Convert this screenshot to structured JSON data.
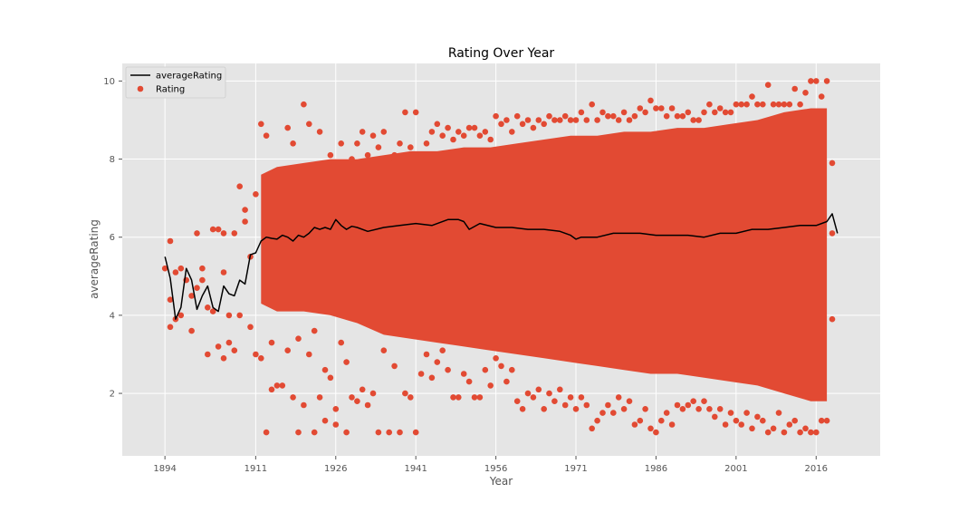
{
  "chart_data": {
    "type": "scatter",
    "title": "Rating Over Year",
    "xlabel": "Year",
    "ylabel": "averageRating",
    "xlim": [
      1886,
      2028
    ],
    "ylim": [
      0.4,
      10.45
    ],
    "xticks": [
      1894,
      1911,
      1926,
      1941,
      1956,
      1971,
      1986,
      2001,
      2016
    ],
    "yticks": [
      2,
      4,
      6,
      8,
      10
    ],
    "grid": true,
    "legend_placement": "upper-left",
    "style": {
      "background": "#e5e5e5",
      "grid_color": "#ffffff",
      "point_color": "#e24a33",
      "line_color": "#000000"
    },
    "series": [
      {
        "name": "averageRating",
        "kind": "line",
        "x": [
          1894,
          1895,
          1896,
          1897,
          1898,
          1899,
          1900,
          1901,
          1902,
          1903,
          1904,
          1905,
          1906,
          1907,
          1908,
          1909,
          1910,
          1911,
          1912,
          1913,
          1914,
          1915,
          1916,
          1917,
          1918,
          1919,
          1920,
          1921,
          1922,
          1923,
          1924,
          1925,
          1926,
          1927,
          1928,
          1929,
          1930,
          1932,
          1935,
          1938,
          1941,
          1944,
          1947,
          1949,
          1950,
          1951,
          1953,
          1956,
          1959,
          1962,
          1965,
          1968,
          1970,
          1971,
          1972,
          1975,
          1978,
          1980,
          1983,
          1986,
          1989,
          1992,
          1995,
          1998,
          2001,
          2004,
          2007,
          2010,
          2013,
          2016,
          2018,
          2019,
          2020
        ],
        "values": [
          5.5,
          4.95,
          3.9,
          4.2,
          5.2,
          4.9,
          4.15,
          4.5,
          4.75,
          4.2,
          4.1,
          4.75,
          4.55,
          4.5,
          4.9,
          4.8,
          5.55,
          5.6,
          5.9,
          6.0,
          5.97,
          5.95,
          6.05,
          6.0,
          5.9,
          6.05,
          6.0,
          6.1,
          6.25,
          6.2,
          6.25,
          6.2,
          6.45,
          6.3,
          6.2,
          6.28,
          6.25,
          6.15,
          6.25,
          6.3,
          6.35,
          6.3,
          6.45,
          6.45,
          6.4,
          6.2,
          6.35,
          6.25,
          6.25,
          6.2,
          6.2,
          6.15,
          6.05,
          5.95,
          6.0,
          6.0,
          6.1,
          6.1,
          6.1,
          6.05,
          6.05,
          6.05,
          6.0,
          6.1,
          6.1,
          6.2,
          6.2,
          6.25,
          6.3,
          6.3,
          6.4,
          6.6,
          6.1
        ]
      },
      {
        "name": "Rating",
        "kind": "scatter",
        "points": [
          [
            1894,
            5.2
          ],
          [
            1895,
            5.9
          ],
          [
            1895,
            4.4
          ],
          [
            1895,
            3.7
          ],
          [
            1896,
            3.9
          ],
          [
            1896,
            5.1
          ],
          [
            1897,
            5.2
          ],
          [
            1897,
            4.0
          ],
          [
            1898,
            4.9
          ],
          [
            1899,
            3.6
          ],
          [
            1899,
            4.5
          ],
          [
            1900,
            6.1
          ],
          [
            1900,
            4.7
          ],
          [
            1901,
            4.9
          ],
          [
            1901,
            5.2
          ],
          [
            1902,
            4.2
          ],
          [
            1902,
            3.0
          ],
          [
            1903,
            6.2
          ],
          [
            1903,
            4.1
          ],
          [
            1904,
            6.2
          ],
          [
            1904,
            3.2
          ],
          [
            1905,
            6.1
          ],
          [
            1905,
            2.9
          ],
          [
            1905,
            5.1
          ],
          [
            1906,
            4.0
          ],
          [
            1906,
            3.3
          ],
          [
            1907,
            6.1
          ],
          [
            1907,
            3.1
          ],
          [
            1908,
            7.3
          ],
          [
            1908,
            4.0
          ],
          [
            1909,
            6.4
          ],
          [
            1909,
            6.7
          ],
          [
            1910,
            3.7
          ],
          [
            1910,
            5.5
          ],
          [
            1911,
            7.1
          ],
          [
            1911,
            3.0
          ],
          [
            1912,
            8.9
          ],
          [
            1912,
            2.9
          ],
          [
            1913,
            8.6
          ],
          [
            1913,
            1.0
          ],
          [
            1914,
            2.1
          ],
          [
            1914,
            3.3
          ],
          [
            1915,
            2.2
          ],
          [
            1916,
            2.2
          ],
          [
            1917,
            8.8
          ],
          [
            1917,
            3.1
          ],
          [
            1918,
            8.4
          ],
          [
            1918,
            1.9
          ],
          [
            1919,
            3.4
          ],
          [
            1919,
            1.0
          ],
          [
            1920,
            9.4
          ],
          [
            1920,
            1.7
          ],
          [
            1921,
            8.9
          ],
          [
            1921,
            3.0
          ],
          [
            1922,
            1.0
          ],
          [
            1922,
            3.6
          ],
          [
            1923,
            8.7
          ],
          [
            1923,
            1.9
          ],
          [
            1924,
            2.6
          ],
          [
            1924,
            1.3
          ],
          [
            1925,
            8.1
          ],
          [
            1925,
            2.4
          ],
          [
            1926,
            1.6
          ],
          [
            1926,
            1.2
          ],
          [
            1927,
            8.4
          ],
          [
            1927,
            3.3
          ],
          [
            1928,
            1.0
          ],
          [
            1928,
            2.8
          ],
          [
            1929,
            8.0
          ],
          [
            1929,
            1.9
          ],
          [
            1930,
            8.4
          ],
          [
            1930,
            1.8
          ],
          [
            1931,
            8.7
          ],
          [
            1931,
            2.1
          ],
          [
            1932,
            8.1
          ],
          [
            1932,
            1.7
          ],
          [
            1933,
            8.6
          ],
          [
            1933,
            2.0
          ],
          [
            1934,
            8.3
          ],
          [
            1934,
            1.0
          ],
          [
            1935,
            8.7
          ],
          [
            1935,
            3.1
          ],
          [
            1936,
            8.0
          ],
          [
            1936,
            1.0
          ],
          [
            1937,
            8.1
          ],
          [
            1937,
            2.7
          ],
          [
            1938,
            8.4
          ],
          [
            1938,
            1.0
          ],
          [
            1939,
            9.2
          ],
          [
            1939,
            2.0
          ],
          [
            1940,
            8.3
          ],
          [
            1940,
            1.9
          ],
          [
            1941,
            9.2
          ],
          [
            1941,
            1.0
          ],
          [
            1942,
            8.1
          ],
          [
            1942,
            2.5
          ],
          [
            1943,
            8.4
          ],
          [
            1943,
            3.0
          ],
          [
            1944,
            8.7
          ],
          [
            1944,
            2.4
          ],
          [
            1945,
            8.9
          ],
          [
            1945,
            2.8
          ],
          [
            1946,
            8.6
          ],
          [
            1946,
            3.1
          ],
          [
            1947,
            8.8
          ],
          [
            1947,
            2.6
          ],
          [
            1948,
            8.5
          ],
          [
            1948,
            1.9
          ],
          [
            1949,
            8.7
          ],
          [
            1949,
            1.9
          ],
          [
            1950,
            8.6
          ],
          [
            1950,
            2.5
          ],
          [
            1951,
            8.8
          ],
          [
            1951,
            2.3
          ],
          [
            1952,
            8.8
          ],
          [
            1952,
            1.9
          ],
          [
            1953,
            8.6
          ],
          [
            1953,
            1.9
          ],
          [
            1954,
            8.7
          ],
          [
            1954,
            2.6
          ],
          [
            1955,
            8.5
          ],
          [
            1955,
            2.2
          ],
          [
            1956,
            9.1
          ],
          [
            1956,
            2.9
          ],
          [
            1957,
            8.9
          ],
          [
            1957,
            2.7
          ],
          [
            1958,
            9.0
          ],
          [
            1958,
            2.3
          ],
          [
            1959,
            8.7
          ],
          [
            1959,
            2.6
          ],
          [
            1960,
            9.1
          ],
          [
            1960,
            1.8
          ],
          [
            1961,
            8.9
          ],
          [
            1961,
            1.6
          ],
          [
            1962,
            9.0
          ],
          [
            1962,
            2.0
          ],
          [
            1963,
            8.8
          ],
          [
            1963,
            1.9
          ],
          [
            1964,
            9.0
          ],
          [
            1964,
            2.1
          ],
          [
            1965,
            8.9
          ],
          [
            1965,
            1.6
          ],
          [
            1966,
            9.1
          ],
          [
            1966,
            2.0
          ],
          [
            1967,
            9.0
          ],
          [
            1967,
            1.8
          ],
          [
            1968,
            9.0
          ],
          [
            1968,
            2.1
          ],
          [
            1969,
            9.1
          ],
          [
            1969,
            1.7
          ],
          [
            1970,
            9.0
          ],
          [
            1970,
            1.9
          ],
          [
            1971,
            9.0
          ],
          [
            1971,
            1.6
          ],
          [
            1972,
            9.2
          ],
          [
            1972,
            1.9
          ],
          [
            1973,
            9.0
          ],
          [
            1973,
            1.7
          ],
          [
            1974,
            9.4
          ],
          [
            1974,
            1.1
          ],
          [
            1975,
            9.0
          ],
          [
            1975,
            1.3
          ],
          [
            1976,
            9.2
          ],
          [
            1976,
            1.5
          ],
          [
            1977,
            9.1
          ],
          [
            1977,
            1.7
          ],
          [
            1978,
            9.1
          ],
          [
            1978,
            1.5
          ],
          [
            1979,
            9.0
          ],
          [
            1979,
            1.9
          ],
          [
            1980,
            9.2
          ],
          [
            1980,
            1.6
          ],
          [
            1981,
            9.0
          ],
          [
            1981,
            1.8
          ],
          [
            1982,
            9.1
          ],
          [
            1982,
            1.2
          ],
          [
            1983,
            9.3
          ],
          [
            1983,
            1.3
          ],
          [
            1984,
            9.2
          ],
          [
            1984,
            1.6
          ],
          [
            1985,
            9.5
          ],
          [
            1985,
            1.1
          ],
          [
            1986,
            9.3
          ],
          [
            1986,
            1.0
          ],
          [
            1987,
            9.3
          ],
          [
            1987,
            1.3
          ],
          [
            1988,
            9.1
          ],
          [
            1988,
            1.5
          ],
          [
            1989,
            9.3
          ],
          [
            1989,
            1.2
          ],
          [
            1990,
            9.1
          ],
          [
            1990,
            1.7
          ],
          [
            1991,
            9.1
          ],
          [
            1991,
            1.6
          ],
          [
            1992,
            9.2
          ],
          [
            1992,
            1.7
          ],
          [
            1993,
            9.0
          ],
          [
            1993,
            1.8
          ],
          [
            1994,
            9.0
          ],
          [
            1994,
            1.6
          ],
          [
            1995,
            9.2
          ],
          [
            1995,
            1.8
          ],
          [
            1996,
            9.4
          ],
          [
            1996,
            1.6
          ],
          [
            1997,
            9.2
          ],
          [
            1997,
            1.4
          ],
          [
            1998,
            9.3
          ],
          [
            1998,
            1.6
          ],
          [
            1999,
            9.2
          ],
          [
            1999,
            1.2
          ],
          [
            2000,
            9.2
          ],
          [
            2000,
            1.5
          ],
          [
            2001,
            9.4
          ],
          [
            2001,
            1.3
          ],
          [
            2002,
            9.4
          ],
          [
            2002,
            1.2
          ],
          [
            2003,
            9.4
          ],
          [
            2003,
            1.5
          ],
          [
            2004,
            9.6
          ],
          [
            2004,
            1.1
          ],
          [
            2005,
            9.4
          ],
          [
            2005,
            1.4
          ],
          [
            2006,
            9.4
          ],
          [
            2006,
            1.3
          ],
          [
            2007,
            9.9
          ],
          [
            2007,
            1.0
          ],
          [
            2008,
            9.4
          ],
          [
            2008,
            1.1
          ],
          [
            2009,
            9.4
          ],
          [
            2009,
            1.5
          ],
          [
            2010,
            9.4
          ],
          [
            2010,
            1.0
          ],
          [
            2011,
            9.4
          ],
          [
            2011,
            1.2
          ],
          [
            2012,
            9.8
          ],
          [
            2012,
            1.3
          ],
          [
            2013,
            9.4
          ],
          [
            2013,
            1.0
          ],
          [
            2014,
            9.7
          ],
          [
            2014,
            1.1
          ],
          [
            2015,
            10.0
          ],
          [
            2015,
            1.0
          ],
          [
            2016,
            10.0
          ],
          [
            2016,
            1.0
          ],
          [
            2017,
            9.6
          ],
          [
            2017,
            1.3
          ],
          [
            2018,
            10.0
          ],
          [
            2018,
            1.3
          ],
          [
            2019,
            7.9
          ],
          [
            2019,
            3.9
          ],
          [
            2019,
            6.1
          ]
        ],
        "band": {
          "x": [
            1912,
            1915,
            1920,
            1925,
            1930,
            1935,
            1940,
            1945,
            1950,
            1955,
            1960,
            1965,
            1970,
            1975,
            1980,
            1985,
            1990,
            1995,
            2000,
            2005,
            2010,
            2015,
            2018
          ],
          "low": [
            4.3,
            4.1,
            4.1,
            4.0,
            3.8,
            3.5,
            3.4,
            3.3,
            3.2,
            3.1,
            3.0,
            2.9,
            2.8,
            2.7,
            2.6,
            2.5,
            2.5,
            2.4,
            2.3,
            2.2,
            2.0,
            1.8,
            1.8
          ],
          "high": [
            7.6,
            7.8,
            7.9,
            8.0,
            8.0,
            8.1,
            8.2,
            8.2,
            8.3,
            8.3,
            8.4,
            8.5,
            8.6,
            8.6,
            8.7,
            8.7,
            8.8,
            8.8,
            8.9,
            9.0,
            9.2,
            9.3,
            9.3
          ]
        }
      }
    ]
  }
}
